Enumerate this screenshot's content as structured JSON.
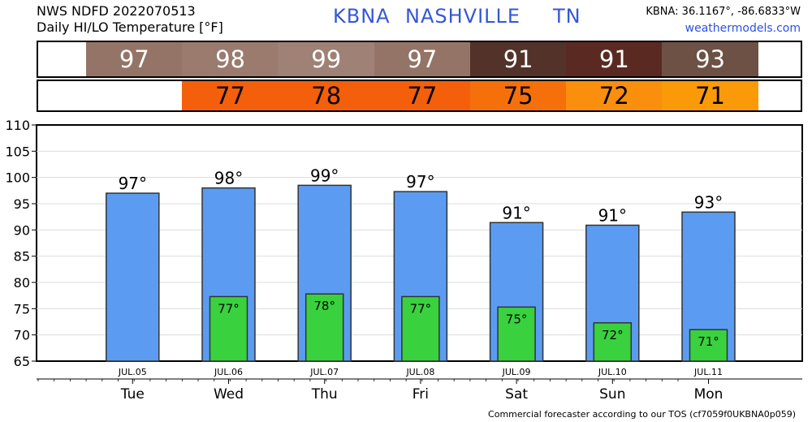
{
  "header": {
    "source": "NWS NDFD 2022070513",
    "product": "Daily HI/LO Temperature [°F]",
    "station": "KBNA",
    "city": "NASHVILLE",
    "state": "TN",
    "coords": "KBNA: 36.1167°, -86.6833°W",
    "site": "weathermodels.com"
  },
  "footer": "Commercial forecaster according to our TOS (cf7059f0UKBNA0p059)",
  "strips": {
    "hi": [
      {
        "label": "97",
        "color": "#957468"
      },
      {
        "label": "98",
        "color": "#9a7b6e"
      },
      {
        "label": "99",
        "color": "#9f8175"
      },
      {
        "label": "97",
        "color": "#957468"
      },
      {
        "label": "91",
        "color": "#523229"
      },
      {
        "label": "91",
        "color": "#5a2a22"
      },
      {
        "label": "93",
        "color": "#6d5145"
      }
    ],
    "lo": [
      {
        "label": "",
        "color": "#ffffff"
      },
      {
        "label": "77",
        "color": "#f35f0b"
      },
      {
        "label": "78",
        "color": "#f35f0b"
      },
      {
        "label": "77",
        "color": "#f35f0b"
      },
      {
        "label": "75",
        "color": "#f5700a"
      },
      {
        "label": "72",
        "color": "#f98f0d"
      },
      {
        "label": "71",
        "color": "#fb9a08"
      }
    ]
  },
  "chart_data": {
    "type": "bar",
    "categories": [
      "Tue",
      "Wed",
      "Thu",
      "Fri",
      "Sat",
      "Sun",
      "Mon"
    ],
    "dates": [
      "JUL.05",
      "JUL.06",
      "JUL.07",
      "JUL.08",
      "JUL.09",
      "JUL.10",
      "JUL.11"
    ],
    "series": [
      {
        "values": [
          97,
          98,
          98.5,
          97.3,
          91.4,
          90.9,
          93.4
        ],
        "labels": [
          "97°",
          "98°",
          "99°",
          "97°",
          "91°",
          "91°",
          "93°"
        ],
        "color": "#5b9cf2"
      },
      {
        "values": [
          null,
          77.3,
          77.8,
          77.3,
          75.3,
          72.3,
          71.0
        ],
        "labels": [
          "",
          "77°",
          "78°",
          "77°",
          "75°",
          "72°",
          "71°"
        ],
        "color": "#3ad13e"
      }
    ],
    "yticks": [
      65,
      70,
      75,
      80,
      85,
      90,
      95,
      100,
      105,
      110
    ],
    "ylim": [
      65,
      110
    ],
    "grid": true
  }
}
